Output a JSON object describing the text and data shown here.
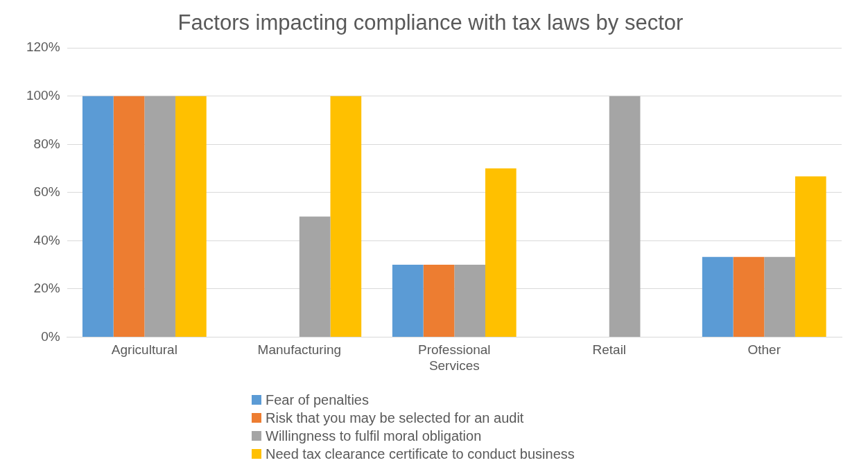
{
  "chart_data": {
    "type": "bar",
    "title": "Factors impacting compliance with tax laws by sector",
    "categories": [
      "Agricultural",
      "Manufacturing",
      "Professional Services",
      "Retail",
      "Other"
    ],
    "series": [
      {
        "name": "Fear of penalties",
        "color": "#5b9bd5",
        "values": [
          100,
          0,
          30,
          0,
          33.3
        ]
      },
      {
        "name": "Risk that you may be selected for an audit",
        "color": "#ed7d31",
        "values": [
          100,
          0,
          30,
          0,
          33.3
        ]
      },
      {
        "name": "Willingness to fulfil moral obligation",
        "color": "#a5a5a5",
        "values": [
          100,
          50,
          30,
          100,
          33.3
        ]
      },
      {
        "name": "Need tax clearance certificate to conduct business",
        "color": "#ffc000",
        "values": [
          100,
          100,
          70,
          0,
          66.7
        ]
      }
    ],
    "ylim": [
      0,
      120
    ],
    "yticks": [
      {
        "value": 0,
        "label": "0%"
      },
      {
        "value": 20,
        "label": "20%"
      },
      {
        "value": 40,
        "label": "40%"
      },
      {
        "value": 60,
        "label": "60%"
      },
      {
        "value": 80,
        "label": "80%"
      },
      {
        "value": 100,
        "label": "100%"
      },
      {
        "value": 120,
        "label": "120%"
      }
    ],
    "grid": "y",
    "legend": "bottom"
  }
}
